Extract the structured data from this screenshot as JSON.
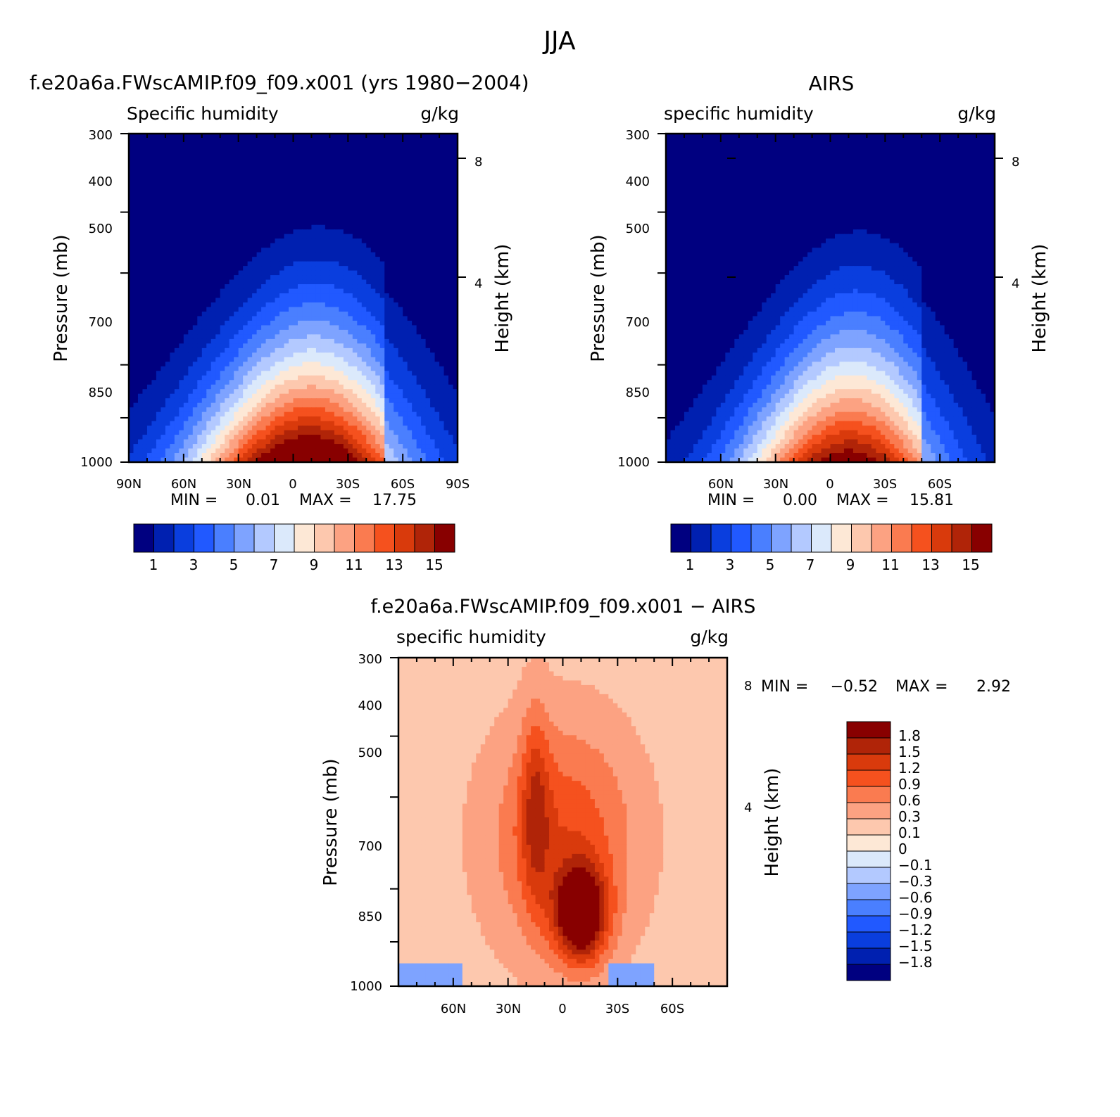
{
  "figure_title": "JJA",
  "chart_data": [
    {
      "type": "heatmap",
      "title": "f.e20a6a.FWscAMIP.f09_f09.x001 (yrs 1980−2004)",
      "variable_label": "Specific humidity",
      "units": "g/kg",
      "ylabel": "Pressure (mb)",
      "ylabel_right": "Height (km)",
      "y_ticks": [
        "300",
        "400",
        "500",
        "700",
        "850",
        "1000"
      ],
      "y_right_ticks": [
        "8",
        "4"
      ],
      "x_ticks": [
        "90N",
        "60N",
        "30N",
        "0",
        "30S",
        "60S",
        "90S"
      ],
      "stats": {
        "min_label": "MIN =",
        "min": "0.01",
        "max_label": "MAX =",
        "max": "17.75"
      },
      "colorbar": {
        "colors": [
          "#000080",
          "#0020b0",
          "#0a3ede",
          "#2159ff",
          "#4a7fff",
          "#7ea3ff",
          "#b3c9ff",
          "#dbe9fb",
          "#fde8d6",
          "#fdc8ae",
          "#fca282",
          "#fa7b50",
          "#f5511e",
          "#d93a0c",
          "#b02408",
          "#880000"
        ],
        "labels": [
          "1",
          "3",
          "5",
          "7",
          "9",
          "11",
          "13",
          "15"
        ]
      },
      "field": {
        "peak_lat": -8,
        "peak_value": 17.75,
        "surface_width_deg": 40,
        "pressure_tilt_deg": -20
      }
    },
    {
      "type": "heatmap",
      "title": "AIRS",
      "variable_label": "specific humidity",
      "units": "g/kg",
      "ylabel": "Pressure (mb)",
      "ylabel_right": "Height (km)",
      "y_ticks": [
        "300",
        "400",
        "500",
        "700",
        "850",
        "1000"
      ],
      "y_right_ticks": [
        "8",
        "4"
      ],
      "x_ticks": [
        "60N",
        "30N",
        "0",
        "30S",
        "60S"
      ],
      "stats": {
        "min_label": "MIN =",
        "min": "0.00",
        "max_label": "MAX =",
        "max": "15.81"
      },
      "colorbar": {
        "colors": [
          "#000080",
          "#0020b0",
          "#0a3ede",
          "#2159ff",
          "#4a7fff",
          "#7ea3ff",
          "#b3c9ff",
          "#dbe9fb",
          "#fde8d6",
          "#fdc8ae",
          "#fca282",
          "#fa7b50",
          "#f5511e",
          "#d93a0c",
          "#b02408",
          "#880000"
        ],
        "labels": [
          "1",
          "3",
          "5",
          "7",
          "9",
          "11",
          "13",
          "15"
        ]
      },
      "field": {
        "peak_lat": -10,
        "peak_value": 15.81,
        "surface_width_deg": 36,
        "pressure_tilt_deg": -20
      }
    },
    {
      "type": "heatmap",
      "title": "f.e20a6a.FWscAMIP.f09_f09.x001 − AIRS",
      "variable_label": "specific humidity",
      "units": "g/kg",
      "ylabel": "Pressure (mb)",
      "ylabel_right": "Height (km)",
      "y_ticks": [
        "300",
        "400",
        "500",
        "700",
        "850",
        "1000"
      ],
      "y_right_ticks": [
        "8",
        "4"
      ],
      "x_ticks": [
        "60N",
        "30N",
        "0",
        "30S",
        "60S"
      ],
      "stats": {
        "min_label": "MIN =",
        "min": "−0.52",
        "max_label": "MAX =",
        "max": "2.92"
      },
      "colorbar": {
        "colors": [
          "#000080",
          "#0020b0",
          "#0a3ede",
          "#2159ff",
          "#4a7fff",
          "#7ea3ff",
          "#b3c9ff",
          "#dbe9fb",
          "#fde8d6",
          "#fdc8ae",
          "#fca282",
          "#fa7b50",
          "#f5511e",
          "#d93a0c",
          "#b02408",
          "#880000"
        ],
        "labels": [
          "1.8",
          "1.5",
          "1.2",
          "0.9",
          "0.6",
          "0.3",
          "0.1",
          "0",
          "−0.1",
          "−0.3",
          "−0.6",
          "−0.9",
          "−1.2",
          "−1.5",
          "−1.8"
        ],
        "levels": [
          -1.8,
          -1.5,
          -1.2,
          -0.9,
          -0.6,
          -0.3,
          -0.1,
          0,
          0.1,
          0.3,
          0.6,
          0.9,
          1.2,
          1.5,
          1.8
        ]
      },
      "field": {
        "peak_lat": -10,
        "peak_pressure": 850,
        "peak_value": 2.92
      }
    }
  ]
}
